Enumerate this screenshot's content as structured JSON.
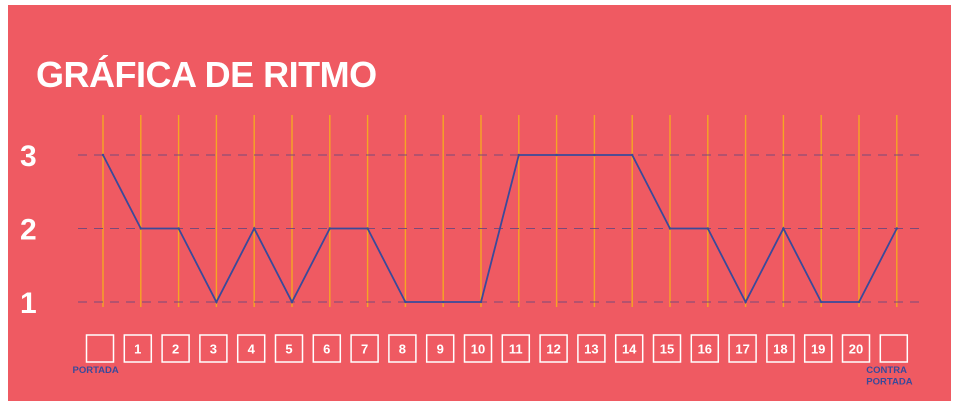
{
  "chart_data": {
    "type": "line",
    "title": "GRÁFICA DE RITMO",
    "yticks": [
      "1",
      "2",
      "3"
    ],
    "ylim": [
      1,
      3
    ],
    "grid": "horizontal dashed + vertical per category",
    "categories": [
      "",
      "1",
      "2",
      "3",
      "4",
      "5",
      "6",
      "7",
      "8",
      "9",
      "10",
      "11",
      "12",
      "13",
      "14",
      "15",
      "16",
      "17",
      "18",
      "19",
      "20",
      ""
    ],
    "end_labels": {
      "start": "PORTADA",
      "end": [
        "CONTRA",
        "PORTADA"
      ]
    },
    "series": [
      {
        "values": [
          3,
          2,
          2,
          1,
          2,
          1,
          2,
          2,
          1,
          1,
          1,
          3,
          3,
          3,
          3,
          2,
          2,
          1,
          2,
          1,
          1,
          2
        ]
      }
    ]
  },
  "colors": {
    "background": "#ef5a62",
    "line": "#3a4a9a",
    "vertical_grid": "#f5a623",
    "horizontal_grid": "#7a4a7a",
    "text": "#ffffff"
  }
}
